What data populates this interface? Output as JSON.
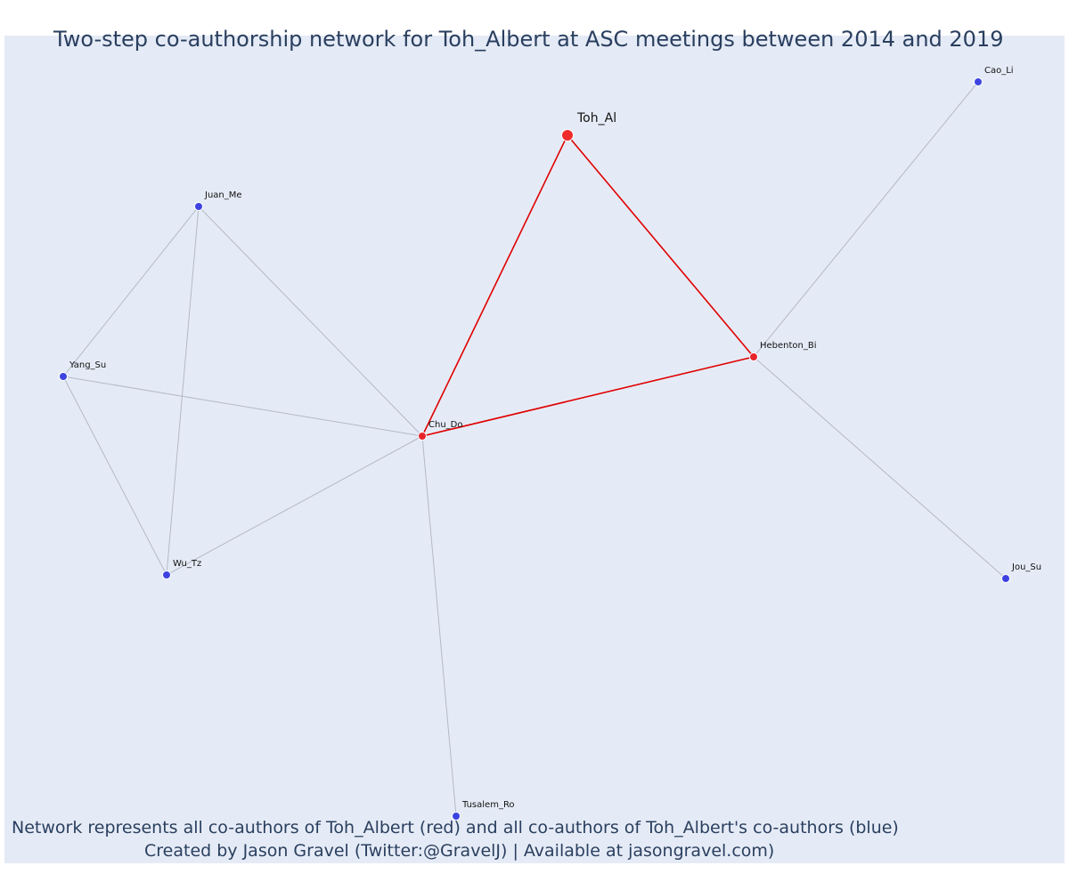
{
  "title": "Two-step co-authorship network for Toh_Albert at ASC meetings between 2014 and 2019",
  "caption": {
    "line1": "Network represents all co-authors of Toh_Albert (red) and all co-authors of Toh_Albert's co-authors (blue)",
    "line2": "Created by Jason Gravel (Twitter:@GravelJ) | Available at jasongravel.com)"
  },
  "colors": {
    "focal": "#ef2b2b",
    "coauthor": "#e8242b",
    "second_step": "#3d43e0",
    "edge_focal": "#e00000",
    "edge_other": "#b4b8c8",
    "background": "#e5ebf6"
  },
  "nodes": [
    {
      "id": "Toh_Al",
      "label": "Toh_Al",
      "group": "focal"
    },
    {
      "id": "Chu_Do",
      "label": "Chu_Do",
      "group": "coauthor"
    },
    {
      "id": "Hebenton_Bi",
      "label": "Hebenton_Bi",
      "group": "coauthor"
    },
    {
      "id": "Cao_Li",
      "label": "Cao_Li",
      "group": "second_step"
    },
    {
      "id": "Juan_Me",
      "label": "Juan_Me",
      "group": "second_step"
    },
    {
      "id": "Yang_Su",
      "label": "Yang_Su",
      "group": "second_step"
    },
    {
      "id": "Wu_Tz",
      "label": "Wu_Tz",
      "group": "second_step"
    },
    {
      "id": "Jou_Su",
      "label": "Jou_Su",
      "group": "second_step"
    },
    {
      "id": "Tusalem_Ro",
      "label": "Tusalem_Ro",
      "group": "second_step"
    }
  ],
  "edges": [
    {
      "source": "Toh_Al",
      "target": "Chu_Do",
      "focal": true
    },
    {
      "source": "Toh_Al",
      "target": "Hebenton_Bi",
      "focal": true
    },
    {
      "source": "Chu_Do",
      "target": "Hebenton_Bi",
      "focal": true
    },
    {
      "source": "Hebenton_Bi",
      "target": "Cao_Li",
      "focal": false
    },
    {
      "source": "Hebenton_Bi",
      "target": "Jou_Su",
      "focal": false
    },
    {
      "source": "Chu_Do",
      "target": "Juan_Me",
      "focal": false
    },
    {
      "source": "Chu_Do",
      "target": "Yang_Su",
      "focal": false
    },
    {
      "source": "Chu_Do",
      "target": "Wu_Tz",
      "focal": false
    },
    {
      "source": "Chu_Do",
      "target": "Tusalem_Ro",
      "focal": false
    },
    {
      "source": "Juan_Me",
      "target": "Yang_Su",
      "focal": false
    },
    {
      "source": "Juan_Me",
      "target": "Wu_Tz",
      "focal": false
    },
    {
      "source": "Yang_Su",
      "target": "Wu_Tz",
      "focal": false
    }
  ]
}
